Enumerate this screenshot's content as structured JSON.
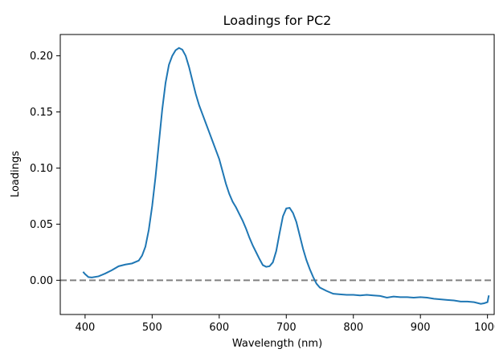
{
  "chart_data": {
    "type": "line",
    "title": "Loadings for PC2",
    "xlabel": "Wavelength (nm)",
    "ylabel": "Loadings",
    "xlim": [
      363,
      1010
    ],
    "ylim": [
      -0.0305,
      0.219
    ],
    "xticks": [
      400,
      500,
      600,
      700,
      800,
      900,
      1000
    ],
    "yticks": [
      0.0,
      0.05,
      0.1,
      0.15,
      0.2
    ],
    "ytick_labels": [
      "0.00",
      "0.05",
      "0.10",
      "0.15",
      "0.20"
    ],
    "grid": false,
    "legend": "none",
    "reference_line": {
      "y": 0.0,
      "style": "dashed",
      "color": "#808080"
    },
    "series": [
      {
        "color": "#1f77b4",
        "x": [
          397,
          400,
          405,
          410,
          420,
          430,
          440,
          450,
          460,
          470,
          480,
          485,
          490,
          495,
          500,
          505,
          510,
          515,
          520,
          525,
          530,
          535,
          540,
          545,
          550,
          555,
          560,
          565,
          570,
          575,
          580,
          585,
          590,
          595,
          600,
          605,
          610,
          615,
          620,
          625,
          630,
          635,
          640,
          645,
          650,
          655,
          660,
          665,
          670,
          675,
          680,
          685,
          690,
          695,
          700,
          705,
          710,
          715,
          720,
          725,
          730,
          735,
          740,
          745,
          750,
          760,
          770,
          780,
          790,
          800,
          810,
          820,
          830,
          840,
          850,
          860,
          870,
          880,
          890,
          900,
          910,
          920,
          930,
          940,
          950,
          960,
          970,
          980,
          990,
          995,
          1000,
          1002
        ],
        "y": [
          0.0075,
          0.0055,
          0.0028,
          0.0025,
          0.0035,
          0.006,
          0.009,
          0.0125,
          0.014,
          0.015,
          0.0175,
          0.022,
          0.03,
          0.045,
          0.066,
          0.092,
          0.122,
          0.152,
          0.176,
          0.192,
          0.2,
          0.205,
          0.207,
          0.2055,
          0.2,
          0.19,
          0.178,
          0.166,
          0.156,
          0.148,
          0.14,
          0.132,
          0.124,
          0.116,
          0.108,
          0.097,
          0.086,
          0.077,
          0.07,
          0.065,
          0.059,
          0.053,
          0.046,
          0.038,
          0.031,
          0.025,
          0.019,
          0.0135,
          0.012,
          0.0125,
          0.016,
          0.026,
          0.042,
          0.057,
          0.064,
          0.0645,
          0.06,
          0.052,
          0.04,
          0.028,
          0.018,
          0.01,
          0.003,
          -0.003,
          -0.0065,
          -0.0095,
          -0.012,
          -0.0125,
          -0.013,
          -0.013,
          -0.0135,
          -0.013,
          -0.0135,
          -0.014,
          -0.0155,
          -0.0145,
          -0.015,
          -0.015,
          -0.0155,
          -0.015,
          -0.0155,
          -0.0165,
          -0.017,
          -0.0175,
          -0.018,
          -0.019,
          -0.019,
          -0.0195,
          -0.021,
          -0.0205,
          -0.0195,
          -0.0135
        ]
      }
    ]
  }
}
